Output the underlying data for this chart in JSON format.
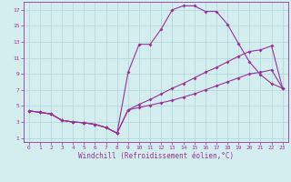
{
  "xlabel": "Windchill (Refroidissement éolien,°C)",
  "bg_color": "#d4eef0",
  "grid_color": "#b0d4d8",
  "line_color": "#993399",
  "xlim": [
    -0.5,
    23.5
  ],
  "ylim": [
    0.5,
    18.0
  ],
  "xticks": [
    0,
    1,
    2,
    3,
    4,
    5,
    6,
    7,
    8,
    9,
    10,
    11,
    12,
    13,
    14,
    15,
    16,
    17,
    18,
    19,
    20,
    21,
    22,
    23
  ],
  "yticks": [
    1,
    3,
    5,
    7,
    9,
    11,
    13,
    15,
    17
  ],
  "line1_x": [
    0,
    1,
    2,
    3,
    4,
    5,
    6,
    7,
    8,
    9,
    10,
    11,
    12,
    13,
    14,
    15,
    16,
    17,
    18,
    19,
    20,
    21,
    22,
    23
  ],
  "line1_y": [
    4.4,
    4.2,
    4.0,
    3.2,
    3.0,
    2.9,
    2.7,
    2.3,
    1.6,
    9.2,
    12.7,
    12.7,
    14.6,
    17.0,
    17.5,
    17.5,
    16.8,
    16.8,
    15.2,
    12.8,
    10.5,
    8.9,
    7.8,
    7.2
  ],
  "line2_x": [
    0,
    1,
    2,
    3,
    4,
    5,
    6,
    7,
    8,
    9,
    10,
    11,
    12,
    13,
    14,
    15,
    16,
    17,
    18,
    19,
    20,
    21,
    22,
    23
  ],
  "line2_y": [
    4.4,
    4.2,
    4.0,
    3.2,
    3.0,
    2.9,
    2.7,
    2.3,
    1.6,
    4.5,
    5.2,
    5.8,
    6.5,
    7.2,
    7.8,
    8.5,
    9.2,
    9.8,
    10.5,
    11.2,
    11.8,
    12.0,
    12.5,
    7.2
  ],
  "line3_x": [
    0,
    1,
    2,
    3,
    4,
    5,
    6,
    7,
    8,
    9,
    10,
    11,
    12,
    13,
    14,
    15,
    16,
    17,
    18,
    19,
    20,
    21,
    22,
    23
  ],
  "line3_y": [
    4.4,
    4.2,
    4.0,
    3.2,
    3.0,
    2.9,
    2.7,
    2.3,
    1.6,
    4.5,
    4.8,
    5.1,
    5.4,
    5.7,
    6.1,
    6.5,
    7.0,
    7.5,
    8.0,
    8.5,
    9.0,
    9.2,
    9.5,
    7.2
  ]
}
